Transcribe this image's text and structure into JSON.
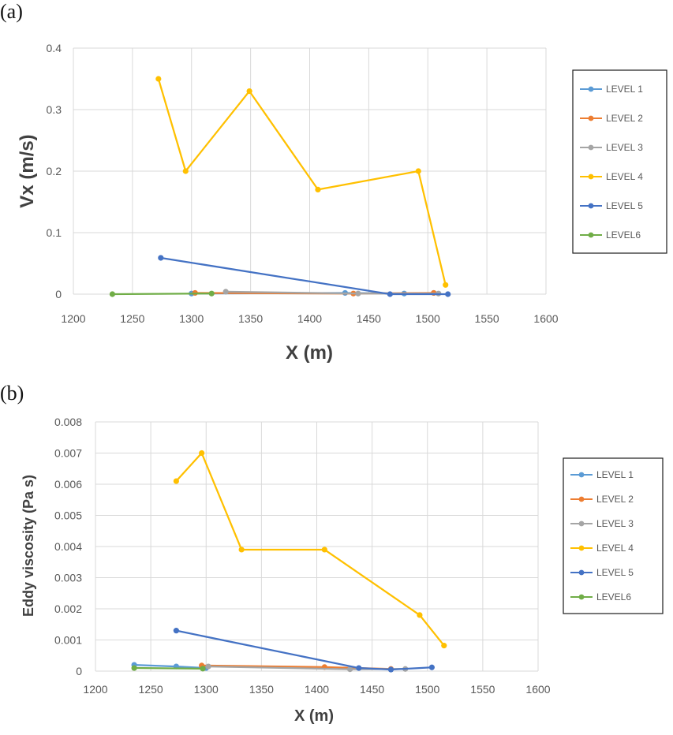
{
  "panels": {
    "a_label": "(a)",
    "b_label": "(b)"
  },
  "chart_data": [
    {
      "type": "line",
      "panel": "(a)",
      "title": "",
      "xlabel": "X (m)",
      "ylabel": "Vx (m/s)",
      "xlim": [
        1200,
        1600
      ],
      "ylim": [
        0,
        0.4
      ],
      "xticks": [
        "1200",
        "1250",
        "1300",
        "1350",
        "1400",
        "1450",
        "1500",
        "1550",
        "1600"
      ],
      "yticks": [
        "0",
        "0.1",
        "0.2",
        "0.3",
        "0.4"
      ],
      "grid": true,
      "legend": "right",
      "series": [
        {
          "name": "LEVEL 1",
          "color": "#5B9BD5",
          "points": [
            [
              1300,
              0.001
            ],
            [
              1430,
              0.002
            ],
            [
              1480,
              0.001
            ],
            [
              1505,
              0.002
            ]
          ]
        },
        {
          "name": "LEVEL 2",
          "color": "#ED7D31",
          "points": [
            [
              1303,
              0.002
            ],
            [
              1437,
              0.001
            ],
            [
              1505,
              0.002
            ]
          ]
        },
        {
          "name": "LEVEL 3",
          "color": "#A5A5A5",
          "points": [
            [
              1329,
              0.004
            ],
            [
              1441,
              0.001
            ],
            [
              1509,
              0.001
            ]
          ]
        },
        {
          "name": "LEVEL 4",
          "color": "#FFC000",
          "points": [
            [
              1272,
              0.35
            ],
            [
              1295,
              0.2
            ],
            [
              1349,
              0.33
            ],
            [
              1407,
              0.17
            ],
            [
              1492,
              0.2
            ],
            [
              1515,
              0.015
            ]
          ]
        },
        {
          "name": "LEVEL 5",
          "color": "#4472C4",
          "points": [
            [
              1274,
              0.059
            ],
            [
              1468,
              0.0
            ],
            [
              1517,
              0.0
            ]
          ]
        },
        {
          "name": "LEVEL6",
          "color": "#70AD47",
          "points": [
            [
              1233,
              0.0
            ],
            [
              1317,
              0.001
            ]
          ]
        }
      ]
    },
    {
      "type": "line",
      "panel": "(b)",
      "title": "",
      "xlabel": "X (m)",
      "ylabel": "Eddy viscosity (Pa s)",
      "xlim": [
        1200,
        1600
      ],
      "ylim": [
        0,
        0.008
      ],
      "xticks": [
        "1200",
        "1250",
        "1300",
        "1350",
        "1400",
        "1450",
        "1500",
        "1550",
        "1600"
      ],
      "yticks": [
        "0",
        "0.001",
        "0.002",
        "0.003",
        "0.004",
        "0.005",
        "0.006",
        "0.007",
        "0.008"
      ],
      "grid": true,
      "legend": "right",
      "series": [
        {
          "name": "LEVEL 1",
          "color": "#5B9BD5",
          "points": [
            [
              1235,
              0.0002
            ],
            [
              1273,
              0.00015
            ],
            [
              1300,
              0.0001
            ]
          ]
        },
        {
          "name": "LEVEL 2",
          "color": "#ED7D31",
          "points": [
            [
              1296,
              0.00018
            ],
            [
              1407,
              0.00013
            ],
            [
              1467,
              7e-05
            ]
          ]
        },
        {
          "name": "LEVEL 3",
          "color": "#A5A5A5",
          "points": [
            [
              1302,
              0.00015
            ],
            [
              1430,
              6e-05
            ],
            [
              1480,
              7e-05
            ]
          ]
        },
        {
          "name": "LEVEL 4",
          "color": "#FFC000",
          "points": [
            [
              1273,
              0.0061
            ],
            [
              1296,
              0.007
            ],
            [
              1332,
              0.0039
            ],
            [
              1407,
              0.0039
            ],
            [
              1493,
              0.0018
            ],
            [
              1515,
              0.00082
            ]
          ]
        },
        {
          "name": "LEVEL 5",
          "color": "#4472C4",
          "points": [
            [
              1273,
              0.0013
            ],
            [
              1438,
              0.0001
            ],
            [
              1467,
              5e-05
            ],
            [
              1504,
              0.00012
            ]
          ]
        },
        {
          "name": "LEVEL6",
          "color": "#70AD47",
          "points": [
            [
              1235,
              0.0001
            ],
            [
              1297,
              8e-05
            ]
          ]
        }
      ]
    }
  ]
}
